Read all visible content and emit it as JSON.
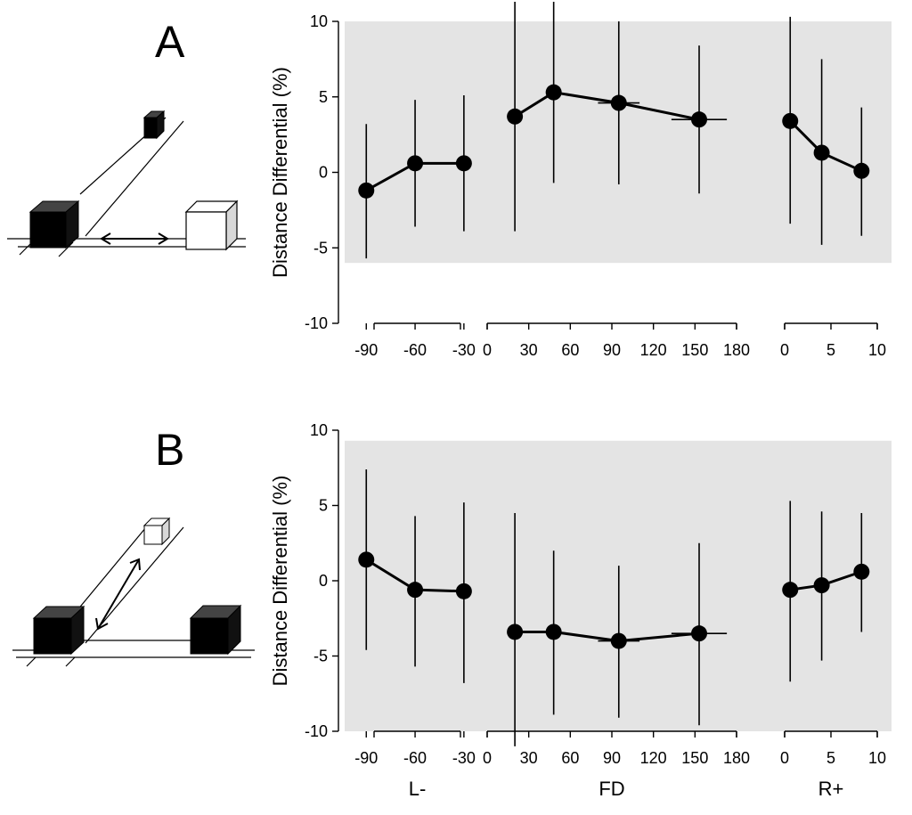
{
  "colors": {
    "background": "#ffffff",
    "shaded_band": "#e4e4e4",
    "marker": "#000000",
    "cube_black": "#000000",
    "cube_black_top": "#444444",
    "cube_white": "#ffffff",
    "cube_white_side": "#d8d8d8"
  },
  "icons": [
    "cube-arrangement-illustration",
    "double-arrow-icon"
  ],
  "chart_data": [
    {
      "type": "scatter",
      "panel_label": "A",
      "title": "",
      "ylabel": "Distance Differential (%)",
      "ylim": [
        -10,
        10
      ],
      "yticks": [
        10,
        5,
        0,
        -5,
        -10
      ],
      "shaded_band": [
        -6,
        10
      ],
      "groups": [
        {
          "name": "L-",
          "label": "",
          "xlim": [
            -100,
            -25
          ],
          "xticks": [
            -90,
            -60,
            -30
          ],
          "points": [
            {
              "x": -90,
              "y": -1.2,
              "err_low": -5.7,
              "err_high": 3.2,
              "xerr": 0
            },
            {
              "x": -60,
              "y": 0.6,
              "err_low": -3.6,
              "err_high": 4.8,
              "xerr": 0
            },
            {
              "x": -30,
              "y": 0.6,
              "err_low": -3.9,
              "err_high": 5.1,
              "xerr": 0
            }
          ]
        },
        {
          "name": "FD",
          "label": "",
          "xlim": [
            0,
            180
          ],
          "xticks": [
            0,
            30,
            60,
            90,
            120,
            150,
            180
          ],
          "points": [
            {
              "x": 20,
              "y": 3.7,
              "err_low": -3.9,
              "err_high": 11.3,
              "xerr": 0
            },
            {
              "x": 48,
              "y": 5.3,
              "err_low": -0.7,
              "err_high": 11.3,
              "xerr": 4
            },
            {
              "x": 95,
              "y": 4.6,
              "err_low": -0.8,
              "err_high": 10.0,
              "xerr": 15
            },
            {
              "x": 153,
              "y": 3.5,
              "err_low": -1.4,
              "err_high": 8.4,
              "xerr": 20
            }
          ]
        },
        {
          "name": "R+",
          "label": "",
          "xlim": [
            0,
            10
          ],
          "xticks": [
            0,
            5,
            10
          ],
          "points": [
            {
              "x": 0.6,
              "y": 3.4,
              "err_low": -3.4,
              "err_high": 10.3,
              "xerr": 0
            },
            {
              "x": 4.0,
              "y": 1.3,
              "err_low": -4.8,
              "err_high": 7.5,
              "xerr": 0
            },
            {
              "x": 8.3,
              "y": 0.1,
              "err_low": -4.2,
              "err_high": 4.3,
              "xerr": 0
            }
          ]
        }
      ]
    },
    {
      "type": "scatter",
      "panel_label": "B",
      "title": "",
      "ylabel": "Distance Differential (%)",
      "ylim": [
        -10,
        10
      ],
      "yticks": [
        10,
        5,
        0,
        -5,
        -10
      ],
      "shaded_band": [
        -10,
        9.3
      ],
      "groups": [
        {
          "name": "L-",
          "label": "L-",
          "xlim": [
            -100,
            -25
          ],
          "xticks": [
            -90,
            -60,
            -30
          ],
          "points": [
            {
              "x": -90,
              "y": 1.4,
              "err_low": -4.6,
              "err_high": 7.4,
              "xerr": 0
            },
            {
              "x": -60,
              "y": -0.6,
              "err_low": -5.7,
              "err_high": 4.3,
              "xerr": 0
            },
            {
              "x": -30,
              "y": -0.7,
              "err_low": -6.8,
              "err_high": 5.2,
              "xerr": 0
            }
          ]
        },
        {
          "name": "FD",
          "label": "FD",
          "xlim": [
            0,
            180
          ],
          "xticks": [
            0,
            30,
            60,
            90,
            120,
            150,
            180
          ],
          "points": [
            {
              "x": 20,
              "y": -3.4,
              "err_low": -11.0,
              "err_high": 4.5,
              "xerr": 0
            },
            {
              "x": 48,
              "y": -3.4,
              "err_low": -8.9,
              "err_high": 2.0,
              "xerr": 0
            },
            {
              "x": 95,
              "y": -4.0,
              "err_low": -9.1,
              "err_high": 1.0,
              "xerr": 15
            },
            {
              "x": 153,
              "y": -3.5,
              "err_low": -9.6,
              "err_high": 2.5,
              "xerr": 20
            }
          ]
        },
        {
          "name": "R+",
          "label": "R+",
          "xlim": [
            0,
            10
          ],
          "xticks": [
            0,
            5,
            10
          ],
          "points": [
            {
              "x": 0.6,
              "y": -0.6,
              "err_low": -6.7,
              "err_high": 5.3,
              "xerr": 0
            },
            {
              "x": 4.0,
              "y": -0.3,
              "err_low": -5.3,
              "err_high": 4.6,
              "xerr": 0
            },
            {
              "x": 8.3,
              "y": 0.6,
              "err_low": -3.4,
              "err_high": 4.5,
              "xerr": 0
            }
          ]
        }
      ]
    }
  ]
}
